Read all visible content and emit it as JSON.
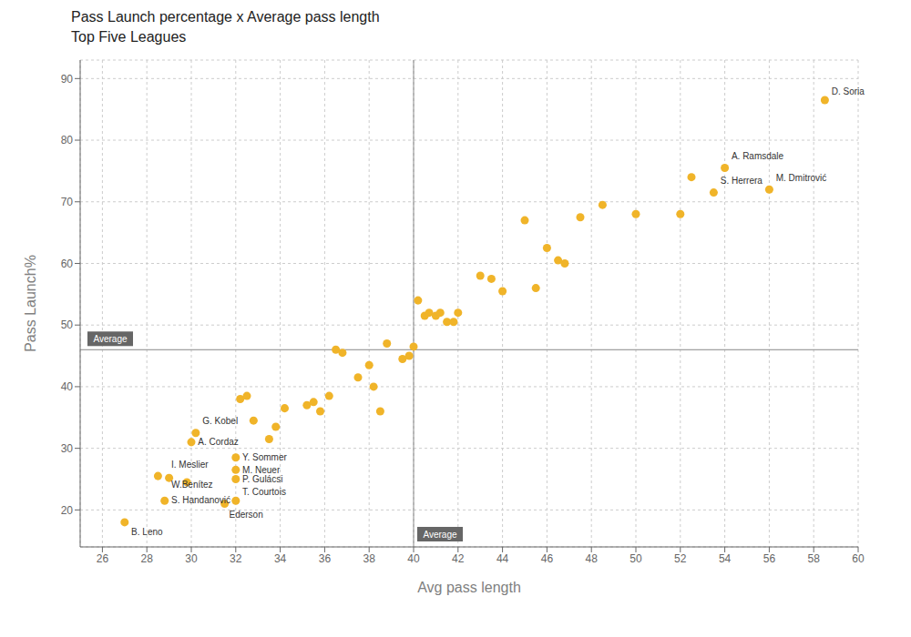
{
  "chart_data": {
    "type": "scatter",
    "title": "Pass Launch percentage x Average pass length",
    "subtitle": "Top Five Leagues",
    "xlabel": "Avg pass length",
    "ylabel": "Pass Launch%",
    "color": "#f0b429",
    "xlim": [
      25,
      60
    ],
    "ylim": [
      14,
      93
    ],
    "xticks": [
      26,
      28,
      30,
      32,
      34,
      36,
      38,
      40,
      42,
      44,
      46,
      48,
      50,
      52,
      54,
      56,
      58,
      60
    ],
    "yticks": [
      20,
      30,
      40,
      50,
      60,
      70,
      80,
      90
    ],
    "grid": true,
    "x": [
      27.0,
      28.5,
      28.8,
      29.0,
      29.8,
      30.0,
      30.2,
      31.5,
      32.0,
      32.0,
      32.0,
      32.0,
      32.2,
      32.5,
      32.8,
      33.5,
      33.8,
      34.2,
      35.2,
      35.5,
      35.8,
      36.2,
      36.5,
      36.8,
      37.5,
      38.0,
      38.2,
      38.5,
      38.8,
      39.5,
      39.8,
      40.0,
      40.2,
      40.5,
      40.7,
      41.0,
      41.2,
      41.5,
      41.8,
      42.0,
      43.0,
      43.5,
      44.0,
      45.0,
      45.5,
      46.0,
      46.5,
      46.8,
      47.5,
      48.5,
      50.0,
      52.0,
      52.5,
      53.5,
      54.0,
      56.0,
      58.5
    ],
    "values": [
      18.0,
      25.5,
      21.5,
      25.2,
      24.5,
      31.0,
      32.5,
      21.0,
      21.5,
      28.5,
      26.5,
      25.0,
      38.0,
      38.5,
      34.5,
      31.5,
      33.5,
      36.5,
      37.0,
      37.5,
      36.0,
      38.5,
      46.0,
      45.5,
      41.5,
      43.5,
      40.0,
      36.0,
      47.0,
      44.5,
      45.0,
      46.5,
      54.0,
      51.5,
      52.0,
      51.5,
      52.0,
      50.5,
      50.5,
      52.0,
      58.0,
      57.5,
      55.5,
      67.0,
      56.0,
      62.5,
      60.5,
      60.0,
      67.5,
      69.5,
      68.0,
      68.0,
      74.0,
      71.5,
      75.5,
      72.0,
      86.5
    ],
    "reference_lines": [
      {
        "axis": "y",
        "value": 46.0,
        "label": "Average"
      },
      {
        "axis": "x",
        "value": 40.0,
        "label": "Average"
      }
    ],
    "annotations": [
      {
        "text": "B. Leno",
        "x": 27.0,
        "y": 18.0,
        "text_x": 27.3,
        "text_y": 17.2
      },
      {
        "text": "S. Handanović",
        "x": 28.8,
        "y": 21.5,
        "text_x": 29.1,
        "text_y": 21.5
      },
      {
        "text": "I. Meslier",
        "x": 28.5,
        "y": 25.5,
        "text_x": 29.1,
        "text_y": 26.5
      },
      {
        "text": "W.Benítez",
        "x": 29.0,
        "y": 25.2,
        "text_x": 29.1,
        "text_y": 24.8
      },
      {
        "text": "A. Cordaz",
        "x": 30.0,
        "y": 31.0,
        "text_x": 30.3,
        "text_y": 31.0
      },
      {
        "text": "G. Kobel",
        "x": 30.2,
        "y": 32.5,
        "text_x": 30.5,
        "text_y": 33.5
      },
      {
        "text": "Ederson",
        "x": 31.5,
        "y": 21.0,
        "text_x": 31.7,
        "text_y": 20.0
      },
      {
        "text": "Y. Sommer",
        "x": 32.0,
        "y": 28.5,
        "text_x": 32.3,
        "text_y": 28.5
      },
      {
        "text": "M. Neuer",
        "x": 32.0,
        "y": 26.5,
        "text_x": 32.3,
        "text_y": 26.5
      },
      {
        "text": "P. Gulácsi",
        "x": 32.0,
        "y": 25.0,
        "text_x": 32.3,
        "text_y": 25.0
      },
      {
        "text": "T. Courtois",
        "x": 32.0,
        "y": 21.5,
        "text_x": 32.3,
        "text_y": 22.0
      },
      {
        "text": "S. Herrera",
        "x": 53.5,
        "y": 71.5,
        "text_x": 53.8,
        "text_y": 72.5
      },
      {
        "text": "A. Ramsdale",
        "x": 54.0,
        "y": 75.5,
        "text_x": 54.3,
        "text_y": 76.5
      },
      {
        "text": "M. Dmitrović",
        "x": 56.0,
        "y": 72.0,
        "text_x": 56.3,
        "text_y": 73.0
      },
      {
        "text": "D. Soria",
        "x": 58.5,
        "y": 86.5,
        "text_x": 58.8,
        "text_y": 87.0
      }
    ]
  }
}
